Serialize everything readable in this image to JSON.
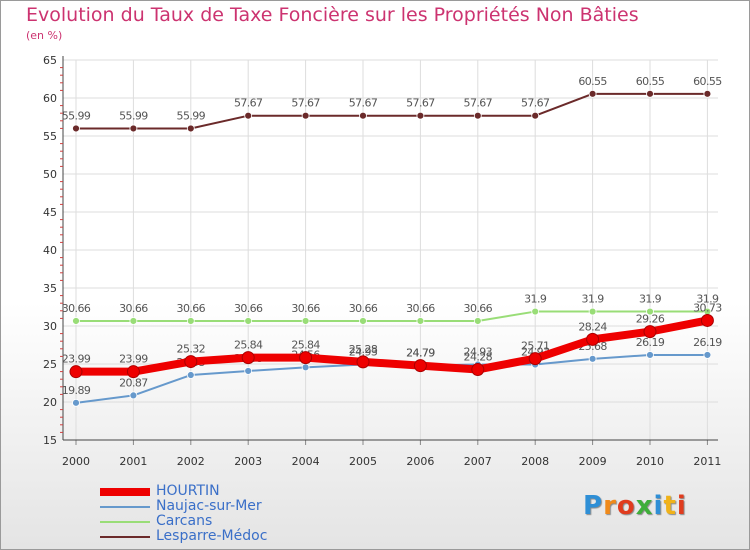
{
  "title": "Evolution du Taux de Taxe Foncière sur les Propriétés Non Bâties",
  "subtitle": "(en %)",
  "logo": {
    "text": "Proxiti",
    "colors": [
      "#2f8fd6",
      "#f08a1a",
      "#e03c1e",
      "#3fae3a",
      "#2f8fd6",
      "#f0b21a",
      "#e03c1e"
    ]
  },
  "chart_data": {
    "type": "line",
    "x": [
      "2000",
      "2001",
      "2002",
      "2003",
      "2004",
      "2005",
      "2006",
      "2007",
      "2008",
      "2009",
      "2010",
      "2011"
    ],
    "ylim": [
      15,
      65
    ],
    "yticks": [
      "15",
      "20",
      "25",
      "30",
      "35",
      "40",
      "45",
      "50",
      "55",
      "60",
      "65"
    ],
    "grid": true,
    "series": [
      {
        "name": "Lesparre-Médoc",
        "color": "#6b2a2a",
        "values": [
          55.99,
          55.99,
          55.99,
          57.67,
          57.67,
          57.67,
          57.67,
          57.67,
          57.67,
          60.55,
          60.55,
          60.55
        ],
        "labels": [
          "55.99",
          "55.99",
          "55.99",
          "57.67",
          "57.67",
          "57.67",
          "57.67",
          "57.67",
          "57.67",
          "60.55",
          "60.55",
          "60.55"
        ]
      },
      {
        "name": "Carcans",
        "color": "#99dd77",
        "values": [
          30.66,
          30.66,
          30.66,
          30.66,
          30.66,
          30.66,
          30.66,
          30.66,
          31.9,
          31.9,
          31.9,
          31.9
        ],
        "labels": [
          "30.66",
          "30.66",
          "30.66",
          "30.66",
          "30.66",
          "30.66",
          "30.66",
          "30.66",
          "31.9",
          "31.9",
          "31.9",
          "31.9"
        ]
      },
      {
        "name": "Naujac-sur-Mer",
        "color": "#6699cc",
        "values": [
          19.89,
          20.87,
          23.55,
          24.08,
          24.56,
          24.93,
          24.79,
          24.93,
          24.93,
          25.68,
          26.19,
          26.19
        ],
        "labels": [
          "19.89",
          "20.87",
          "23.55",
          "24.08",
          "24.56",
          "24.93",
          "24.79",
          "24.93",
          "24.93",
          "25.68",
          "26.19",
          "26.19"
        ]
      },
      {
        "name": "HOURTIN",
        "color": "#ee0000",
        "values": [
          23.99,
          23.99,
          25.32,
          25.84,
          25.84,
          25.28,
          24.79,
          24.28,
          25.71,
          28.24,
          29.26,
          30.73
        ],
        "labels": [
          "23.99",
          "23.99",
          "25.32",
          "25.84",
          "25.84",
          "25.28",
          "24.79",
          "24.28",
          "25.71",
          "28.24",
          "29.26",
          "30.73"
        ]
      }
    ],
    "legend": [
      "HOURTIN",
      "Naujac-sur-Mer",
      "Carcans",
      "Lesparre-Médoc"
    ],
    "legend_position": "bottom-left"
  }
}
